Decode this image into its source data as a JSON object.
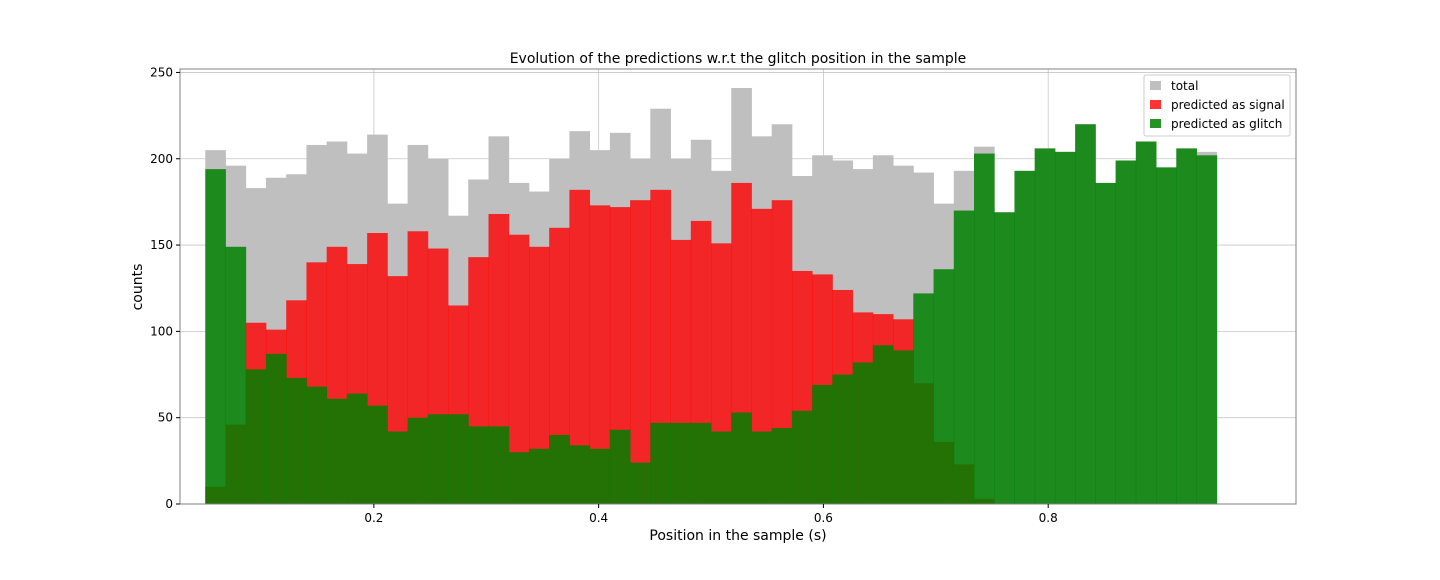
{
  "chart_data": {
    "type": "bar",
    "title": "Evolution of the predictions w.r.t the glitch position in the sample",
    "xlabel": "Position in the sample (s)",
    "ylabel": "counts",
    "xlim": [
      0.0275,
      1.0205
    ],
    "ylim": [
      0,
      252
    ],
    "xticks": [
      0.2,
      0.4,
      0.6,
      0.8
    ],
    "xtick_labels": [
      "0.2",
      "0.4",
      "0.6",
      "0.8"
    ],
    "yticks": [
      0,
      50,
      100,
      150,
      200,
      250
    ],
    "ytick_labels": [
      "0",
      "50",
      "100",
      "150",
      "200",
      "250"
    ],
    "grid": true,
    "legend_position": "top-right",
    "bin_start": 0.05,
    "bin_width": 0.018,
    "series": [
      {
        "name": "total",
        "color": "#bfbfbf",
        "values": [
          205,
          196,
          183,
          189,
          191,
          208,
          210,
          203,
          214,
          174,
          208,
          200,
          167,
          188,
          213,
          186,
          181,
          200,
          216,
          205,
          215,
          200,
          229,
          200,
          211,
          193,
          241,
          213,
          220,
          190,
          202,
          199,
          194,
          202,
          196,
          192,
          174,
          193,
          207,
          169,
          193,
          206,
          204,
          220,
          186,
          199,
          210,
          195,
          206,
          204
        ]
      },
      {
        "name": "predicted as signal",
        "color": "#ff0000",
        "values": [
          10,
          46,
          105,
          101,
          118,
          140,
          149,
          139,
          157,
          132,
          158,
          148,
          115,
          143,
          168,
          156,
          149,
          160,
          182,
          173,
          172,
          176,
          182,
          153,
          164,
          151,
          186,
          171,
          176,
          135,
          133,
          124,
          111,
          110,
          107,
          70,
          36,
          23,
          3,
          0,
          0,
          0,
          0,
          0,
          0,
          0,
          0,
          0,
          0,
          0
        ]
      },
      {
        "name": "predicted as glitch",
        "color": "#008000",
        "values": [
          194,
          149,
          78,
          87,
          73,
          68,
          61,
          64,
          57,
          42,
          50,
          52,
          52,
          45,
          45,
          30,
          32,
          40,
          34,
          32,
          43,
          24,
          47,
          47,
          47,
          42,
          53,
          42,
          44,
          54,
          69,
          75,
          82,
          92,
          89,
          122,
          136,
          170,
          203,
          169,
          193,
          206,
          204,
          220,
          186,
          199,
          210,
          195,
          206,
          202
        ]
      }
    ]
  }
}
